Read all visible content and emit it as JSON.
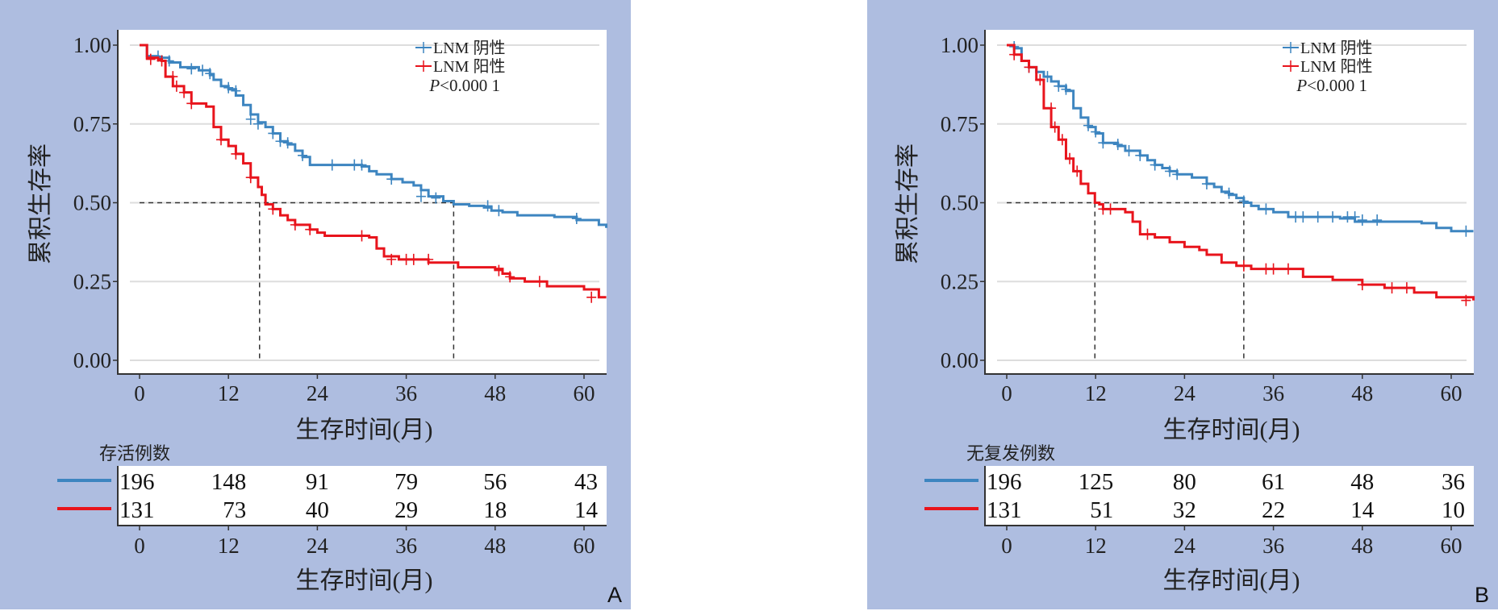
{
  "colors": {
    "negative": "#3d85c0",
    "positive": "#e8141c",
    "panel_bg": "#aebde0",
    "grid": "#dddddd"
  },
  "chart_data": [
    {
      "type": "line",
      "subtype": "kaplan-meier",
      "panel_label": "A",
      "xlabel": "生存时间(月)",
      "ylabel": "累积生存率",
      "xlim": [
        -1.5,
        63
      ],
      "ylim": [
        -0.02,
        1.02
      ],
      "xticks": [
        0,
        12,
        24,
        36,
        48,
        60
      ],
      "yticks": [
        "0.00",
        "0.25",
        "0.50",
        "0.75",
        "1.00"
      ],
      "grid": true,
      "legend": {
        "position": "top-right",
        "entries": [
          "LNM 阴性",
          "LNM 阳性"
        ]
      },
      "annotation": {
        "p_prefix": "P",
        "p_text": "<0.000 1"
      },
      "median_lines": [
        16.2,
        42.4
      ],
      "series": [
        {
          "name": "LNM 阴性",
          "color_key": "negative",
          "steps": [
            [
              0,
              1.0
            ],
            [
              1,
              0.965
            ],
            [
              2.5,
              0.96
            ],
            [
              4,
              0.945
            ],
            [
              5.5,
              0.93
            ],
            [
              8,
              0.92
            ],
            [
              9.5,
              0.905
            ],
            [
              10,
              0.89
            ],
            [
              11,
              0.87
            ],
            [
              12,
              0.86
            ],
            [
              13,
              0.84
            ],
            [
              14,
              0.81
            ],
            [
              15,
              0.78
            ],
            [
              16,
              0.755
            ],
            [
              17,
              0.74
            ],
            [
              18,
              0.72
            ],
            [
              19,
              0.695
            ],
            [
              20,
              0.685
            ],
            [
              21,
              0.665
            ],
            [
              22,
              0.645
            ],
            [
              23,
              0.62
            ],
            [
              30,
              0.615
            ],
            [
              31,
              0.6
            ],
            [
              32,
              0.59
            ],
            [
              34,
              0.575
            ],
            [
              35.5,
              0.565
            ],
            [
              37,
              0.555
            ],
            [
              38,
              0.54
            ],
            [
              39,
              0.52
            ],
            [
              41,
              0.505
            ],
            [
              42.4,
              0.495
            ],
            [
              44.5,
              0.49
            ],
            [
              46.5,
              0.485
            ],
            [
              47.5,
              0.475
            ],
            [
              49,
              0.47
            ],
            [
              51,
              0.46
            ],
            [
              56,
              0.455
            ],
            [
              59,
              0.445
            ],
            [
              62,
              0.43
            ],
            [
              63,
              0.42
            ]
          ],
          "censors": [
            [
              2.5,
              0.965
            ],
            [
              4,
              0.95
            ],
            [
              7,
              0.925
            ],
            [
              8.5,
              0.92
            ],
            [
              9.5,
              0.91
            ],
            [
              12,
              0.865
            ],
            [
              13,
              0.855
            ],
            [
              15,
              0.765
            ],
            [
              16,
              0.75
            ],
            [
              18,
              0.72
            ],
            [
              19,
              0.695
            ],
            [
              20,
              0.69
            ],
            [
              22,
              0.65
            ],
            [
              26,
              0.62
            ],
            [
              29,
              0.62
            ],
            [
              30,
              0.62
            ],
            [
              34,
              0.575
            ],
            [
              38,
              0.52
            ],
            [
              40,
              0.515
            ],
            [
              47,
              0.49
            ],
            [
              48.5,
              0.475
            ],
            [
              59,
              0.45
            ]
          ]
        },
        {
          "name": "LNM 阳性",
          "color_key": "positive",
          "steps": [
            [
              0,
              1.0
            ],
            [
              1,
              0.96
            ],
            [
              2.5,
              0.955
            ],
            [
              3,
              0.95
            ],
            [
              3.5,
              0.9
            ],
            [
              4.5,
              0.87
            ],
            [
              6,
              0.85
            ],
            [
              7,
              0.815
            ],
            [
              9,
              0.805
            ],
            [
              10,
              0.74
            ],
            [
              11,
              0.7
            ],
            [
              12,
              0.68
            ],
            [
              13,
              0.655
            ],
            [
              14,
              0.625
            ],
            [
              15,
              0.58
            ],
            [
              16,
              0.55
            ],
            [
              16.5,
              0.525
            ],
            [
              17,
              0.495
            ],
            [
              18,
              0.48
            ],
            [
              19,
              0.46
            ],
            [
              20,
              0.445
            ],
            [
              21,
              0.43
            ],
            [
              23,
              0.415
            ],
            [
              24,
              0.405
            ],
            [
              25,
              0.395
            ],
            [
              31,
              0.39
            ],
            [
              32,
              0.355
            ],
            [
              33,
              0.33
            ],
            [
              35,
              0.32
            ],
            [
              39,
              0.31
            ],
            [
              43,
              0.295
            ],
            [
              48,
              0.29
            ],
            [
              49,
              0.275
            ],
            [
              50,
              0.26
            ],
            [
              52,
              0.25
            ],
            [
              55,
              0.235
            ],
            [
              60,
              0.225
            ],
            [
              62,
              0.2
            ],
            [
              63,
              0.2
            ]
          ],
          "censors": [
            [
              1.5,
              0.955
            ],
            [
              3,
              0.95
            ],
            [
              4.5,
              0.9
            ],
            [
              5,
              0.87
            ],
            [
              6,
              0.85
            ],
            [
              7,
              0.815
            ],
            [
              11,
              0.7
            ],
            [
              13,
              0.655
            ],
            [
              15,
              0.58
            ],
            [
              18,
              0.48
            ],
            [
              21,
              0.43
            ],
            [
              23,
              0.415
            ],
            [
              30,
              0.395
            ],
            [
              34,
              0.32
            ],
            [
              36,
              0.32
            ],
            [
              37,
              0.32
            ],
            [
              39,
              0.32
            ],
            [
              48.5,
              0.285
            ],
            [
              50,
              0.265
            ],
            [
              54,
              0.25
            ],
            [
              61,
              0.2
            ]
          ]
        }
      ],
      "risk_table": {
        "title": "存活例数",
        "times": [
          0,
          12,
          24,
          36,
          48,
          60
        ],
        "rows": [
          {
            "series": "LNM 阴性",
            "color_key": "negative",
            "values": [
              196,
              148,
              91,
              79,
              56,
              43
            ]
          },
          {
            "series": "LNM 阳性",
            "color_key": "positive",
            "values": [
              131,
              73,
              40,
              29,
              18,
              14
            ]
          }
        ],
        "xlabel": "生存时间(月)"
      }
    },
    {
      "type": "line",
      "subtype": "kaplan-meier",
      "panel_label": "B",
      "xlabel": "生存时间(月)",
      "ylabel": "累积生存率",
      "xlim": [
        -1.5,
        63
      ],
      "ylim": [
        -0.02,
        1.02
      ],
      "xticks": [
        0,
        12,
        24,
        36,
        48,
        60
      ],
      "yticks": [
        "0.00",
        "0.25",
        "0.50",
        "0.75",
        "1.00"
      ],
      "grid": true,
      "legend": {
        "position": "top-right",
        "entries": [
          "LNM 阴性",
          "LNM 阳性"
        ]
      },
      "annotation": {
        "p_prefix": "P",
        "p_text": "<0.000 1"
      },
      "median_lines": [
        11.9,
        32.0
      ],
      "series": [
        {
          "name": "LNM 阴性",
          "color_key": "negative",
          "steps": [
            [
              0,
              1.0
            ],
            [
              1,
              0.99
            ],
            [
              2,
              0.95
            ],
            [
              3,
              0.93
            ],
            [
              4,
              0.915
            ],
            [
              5,
              0.9
            ],
            [
              6,
              0.885
            ],
            [
              7,
              0.87
            ],
            [
              8,
              0.855
            ],
            [
              9,
              0.8
            ],
            [
              10,
              0.77
            ],
            [
              11,
              0.74
            ],
            [
              12,
              0.72
            ],
            [
              13,
              0.69
            ],
            [
              15,
              0.68
            ],
            [
              16,
              0.665
            ],
            [
              18,
              0.65
            ],
            [
              19,
              0.635
            ],
            [
              20,
              0.62
            ],
            [
              21,
              0.61
            ],
            [
              22,
              0.6
            ],
            [
              23,
              0.59
            ],
            [
              25,
              0.58
            ],
            [
              27,
              0.56
            ],
            [
              28,
              0.55
            ],
            [
              29,
              0.535
            ],
            [
              30,
              0.525
            ],
            [
              31,
              0.515
            ],
            [
              32,
              0.5
            ],
            [
              33,
              0.49
            ],
            [
              34,
              0.48
            ],
            [
              36,
              0.47
            ],
            [
              38,
              0.455
            ],
            [
              45,
              0.45
            ],
            [
              47,
              0.44
            ],
            [
              56,
              0.435
            ],
            [
              58,
              0.42
            ],
            [
              60,
              0.41
            ],
            [
              63,
              0.41
            ]
          ],
          "censors": [
            [
              1,
              0.995
            ],
            [
              3,
              0.93
            ],
            [
              5.5,
              0.9
            ],
            [
              7,
              0.87
            ],
            [
              8,
              0.86
            ],
            [
              11,
              0.745
            ],
            [
              12,
              0.725
            ],
            [
              13,
              0.69
            ],
            [
              15,
              0.685
            ],
            [
              16.5,
              0.665
            ],
            [
              18,
              0.65
            ],
            [
              20,
              0.62
            ],
            [
              22,
              0.6
            ],
            [
              23,
              0.59
            ],
            [
              27,
              0.56
            ],
            [
              30,
              0.53
            ],
            [
              32,
              0.505
            ],
            [
              35,
              0.48
            ],
            [
              39,
              0.455
            ],
            [
              40,
              0.455
            ],
            [
              42,
              0.455
            ],
            [
              44,
              0.455
            ],
            [
              46,
              0.455
            ],
            [
              47,
              0.455
            ],
            [
              48,
              0.445
            ],
            [
              50,
              0.445
            ],
            [
              62,
              0.41
            ]
          ]
        },
        {
          "name": "LNM 阳性",
          "color_key": "positive",
          "steps": [
            [
              0,
              1.0
            ],
            [
              1,
              0.97
            ],
            [
              2,
              0.95
            ],
            [
              3,
              0.93
            ],
            [
              4,
              0.89
            ],
            [
              5,
              0.8
            ],
            [
              6,
              0.74
            ],
            [
              7,
              0.7
            ],
            [
              8,
              0.64
            ],
            [
              9,
              0.6
            ],
            [
              10,
              0.56
            ],
            [
              11,
              0.53
            ],
            [
              11.9,
              0.5
            ],
            [
              12.5,
              0.495
            ],
            [
              13,
              0.48
            ],
            [
              16,
              0.47
            ],
            [
              17,
              0.44
            ],
            [
              18,
              0.4
            ],
            [
              20,
              0.39
            ],
            [
              22,
              0.375
            ],
            [
              24,
              0.36
            ],
            [
              26,
              0.35
            ],
            [
              27,
              0.335
            ],
            [
              29,
              0.31
            ],
            [
              31,
              0.3
            ],
            [
              33,
              0.29
            ],
            [
              40,
              0.265
            ],
            [
              44,
              0.255
            ],
            [
              48,
              0.24
            ],
            [
              51,
              0.23
            ],
            [
              55,
              0.215
            ],
            [
              58,
              0.2
            ],
            [
              63,
              0.19
            ]
          ],
          "censors": [
            [
              1,
              0.97
            ],
            [
              3,
              0.93
            ],
            [
              4.5,
              0.89
            ],
            [
              6,
              0.8
            ],
            [
              6.5,
              0.74
            ],
            [
              7.5,
              0.7
            ],
            [
              8.5,
              0.64
            ],
            [
              9.5,
              0.6
            ],
            [
              13,
              0.48
            ],
            [
              14,
              0.48
            ],
            [
              19,
              0.4
            ],
            [
              32,
              0.3
            ],
            [
              35,
              0.29
            ],
            [
              36,
              0.29
            ],
            [
              38,
              0.29
            ],
            [
              48,
              0.24
            ],
            [
              52,
              0.23
            ],
            [
              54,
              0.23
            ],
            [
              62,
              0.19
            ]
          ]
        }
      ],
      "risk_table": {
        "title": "无复发例数",
        "times": [
          0,
          12,
          24,
          36,
          48,
          60
        ],
        "rows": [
          {
            "series": "LNM 阴性",
            "color_key": "negative",
            "values": [
              196,
              125,
              80,
              61,
              48,
              36
            ]
          },
          {
            "series": "LNM 阳性",
            "color_key": "positive",
            "values": [
              131,
              51,
              32,
              22,
              14,
              10
            ]
          }
        ],
        "xlabel": "生存时间(月)"
      }
    }
  ]
}
